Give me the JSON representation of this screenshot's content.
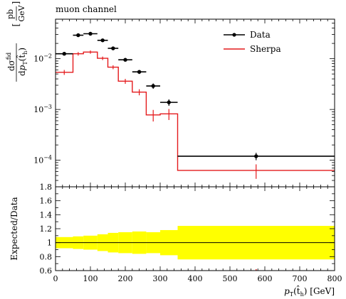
{
  "chart_data": [
    {
      "type": "line",
      "title": "muon channel",
      "xlabel": "p_T(t̂_h) [GeV]",
      "ylabel": "dσ^fid/dp_T(t̂_h) [pb/GeV]",
      "xlim": [
        0,
        800
      ],
      "ylim": [
        3e-05,
        0.06
      ],
      "yscale": "log",
      "yticks": [
        {
          "value": 0.01,
          "base": "10",
          "exp": "−2"
        },
        {
          "value": 0.001,
          "base": "10",
          "exp": "−3"
        },
        {
          "value": 0.0001,
          "base": "10",
          "exp": "−4"
        }
      ],
      "legend_position": "top-right",
      "legend": [
        {
          "name": "Data",
          "color": "#000000",
          "style": "marker"
        },
        {
          "name": "Sherpa",
          "color": "#e41a1c",
          "style": "line"
        }
      ],
      "series": [
        {
          "name": "Data",
          "kind": "points",
          "x": [
            25,
            65,
            100,
            135,
            165,
            200,
            240,
            280,
            325,
            575
          ],
          "xerr_lo": [
            25,
            15,
            20,
            15,
            15,
            20,
            20,
            20,
            25,
            225
          ],
          "xerr_hi": [
            25,
            15,
            20,
            15,
            15,
            20,
            20,
            20,
            25,
            225
          ],
          "y": [
            0.0125,
            0.029,
            0.031,
            0.023,
            0.016,
            0.0095,
            0.0055,
            0.0029,
            0.00138,
            0.00012
          ],
          "yerr_lo": [
            0.0008,
            0.0015,
            0.0015,
            0.0013,
            0.001,
            0.0007,
            0.0005,
            0.00035,
            0.0002,
            2e-05
          ],
          "yerr_hi": [
            0.0008,
            0.0015,
            0.0015,
            0.0013,
            0.001,
            0.0007,
            0.0005,
            0.00035,
            0.0002,
            2e-05
          ]
        },
        {
          "name": "Sherpa",
          "kind": "histogram",
          "edges": [
            0,
            50,
            80,
            120,
            150,
            180,
            220,
            260,
            300,
            350,
            800
          ],
          "values": [
            0.0054,
            0.0125,
            0.0135,
            0.0102,
            0.0068,
            0.0036,
            0.0022,
            0.00078,
            0.00082,
            6.3e-05
          ],
          "err_lo": [
            0.0006,
            0.001,
            0.001,
            0.0008,
            0.0006,
            0.0004,
            0.0003,
            0.0002,
            0.0002,
            2e-05
          ],
          "err_hi": [
            0.0006,
            0.001,
            0.001,
            0.0008,
            0.0006,
            0.0004,
            0.0003,
            0.0002,
            0.0002,
            2e-05
          ]
        }
      ]
    },
    {
      "type": "area",
      "xlabel": "p_T(t̂_h) [GeV]",
      "ylabel": "Expected/Data",
      "xlim": [
        0,
        800
      ],
      "ylim": [
        0.6,
        1.8
      ],
      "yticks": [
        0.6,
        0.8,
        1,
        1.2,
        1.4,
        1.6,
        1.8
      ],
      "xticks": [
        0,
        100,
        200,
        300,
        400,
        500,
        600,
        700,
        800
      ],
      "reference_line": 1.0,
      "band_color": "#ffff00",
      "band": {
        "edges": [
          0,
          50,
          80,
          120,
          150,
          180,
          220,
          260,
          300,
          350,
          800
        ],
        "lo": [
          0.92,
          0.91,
          0.9,
          0.88,
          0.86,
          0.85,
          0.84,
          0.85,
          0.82,
          0.76
        ],
        "hi": [
          1.08,
          1.09,
          1.1,
          1.12,
          1.14,
          1.15,
          1.16,
          1.15,
          1.18,
          1.24
        ]
      },
      "series": [
        {
          "name": "Sherpa",
          "x": [
            575
          ],
          "yerr": [
            [
              0.6,
              0.62
            ]
          ],
          "color": "#e41a1c",
          "note": "marker below lower axis limit"
        }
      ]
    }
  ]
}
